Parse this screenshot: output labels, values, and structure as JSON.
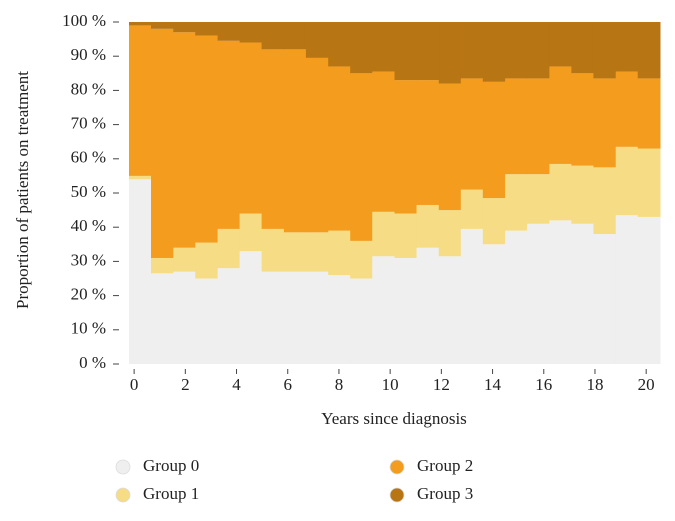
{
  "chart_data": {
    "type": "stacked-step-area",
    "x_label": "Years since diagnosis",
    "y_label": "Proportion of patients on treatment",
    "x": [
      -0.2,
      0.66,
      1.53,
      2.39,
      3.26,
      4.12,
      4.98,
      5.85,
      6.71,
      7.58,
      8.44,
      9.3,
      10.17,
      11.03,
      11.9,
      12.76,
      13.62,
      14.49,
      15.35,
      16.22,
      17.08,
      17.94,
      18.81,
      19.67
    ],
    "series": [
      {
        "name": "Group 0",
        "color": "#efefef",
        "values": [
          54,
          26.5,
          27,
          25,
          28,
          33,
          27,
          27,
          27,
          26,
          25,
          31.5,
          31,
          34,
          31.5,
          39.5,
          35,
          39,
          41,
          42,
          41,
          38,
          43.5,
          43
        ]
      },
      {
        "name": "Group 1",
        "color": "#f5dc85",
        "values": [
          1,
          4.5,
          7,
          10.5,
          11.5,
          11,
          12.5,
          11.5,
          11.5,
          13,
          11,
          13,
          13,
          12.5,
          13.5,
          11.5,
          13.5,
          16.5,
          14.5,
          16.5,
          17,
          19.5,
          20,
          20
        ]
      },
      {
        "name": "Group 2",
        "color": "#f39c1e",
        "values": [
          44,
          67,
          63,
          60.5,
          55,
          50,
          52.5,
          53.5,
          51,
          48,
          49,
          41,
          39,
          36.5,
          37,
          32.5,
          34,
          28,
          28,
          28.5,
          27,
          26,
          22,
          20.5
        ]
      },
      {
        "name": "Group 3",
        "color": "#b87514",
        "values": [
          1,
          2,
          3,
          4,
          5.5,
          6,
          8,
          8,
          10.5,
          13,
          15,
          14.5,
          17,
          17,
          18,
          16.5,
          17.5,
          16.5,
          16.5,
          13,
          15,
          16.5,
          14.5,
          16.5
        ]
      }
    ],
    "xlim": [
      -0.2,
      20.54
    ],
    "xticks": [
      0,
      2,
      4,
      6,
      8,
      10,
      12,
      14,
      16,
      18,
      20
    ],
    "ylim": [
      0,
      100
    ],
    "yticks": [
      {
        "value": 0,
        "label": "0 %"
      },
      {
        "value": 10,
        "label": "10 %"
      },
      {
        "value": 20,
        "label": "20 %"
      },
      {
        "value": 30,
        "label": "30 %"
      },
      {
        "value": 40,
        "label": "40 %"
      },
      {
        "value": 50,
        "label": "50 %"
      },
      {
        "value": 60,
        "label": "60 %"
      },
      {
        "value": 70,
        "label": "70 %"
      },
      {
        "value": 80,
        "label": "80 %"
      },
      {
        "value": 90,
        "label": "90 %"
      },
      {
        "value": 100,
        "label": "100 %"
      }
    ],
    "legend": "bottom"
  }
}
